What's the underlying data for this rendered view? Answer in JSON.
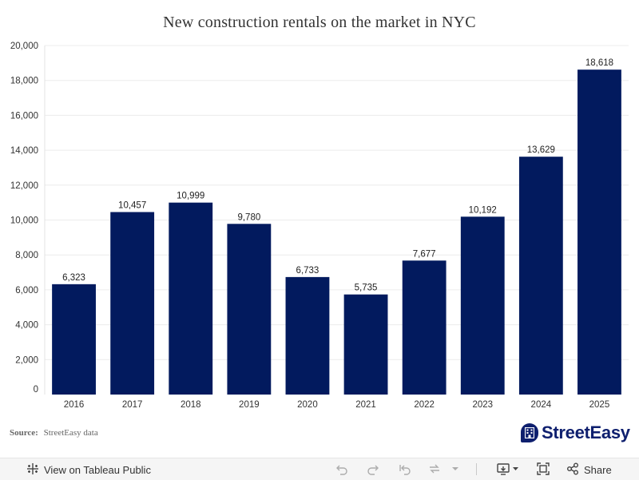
{
  "chart_data": {
    "type": "bar",
    "title": "New construction rentals on the market in NYC",
    "categories": [
      "2016",
      "2017",
      "2018",
      "2019",
      "2020",
      "2021",
      "2022",
      "2023",
      "2024",
      "2025"
    ],
    "values": [
      6323,
      10457,
      10999,
      9780,
      6733,
      5735,
      7677,
      10192,
      13629,
      18618
    ],
    "value_labels": [
      "6,323",
      "10,457",
      "10,999",
      "9,780",
      "6,733",
      "5,735",
      "7,677",
      "10,192",
      "13,629",
      "18,618"
    ],
    "yticks": [
      "0",
      "2,000",
      "4,000",
      "6,000",
      "8,000",
      "10,000",
      "12,000",
      "14,000",
      "16,000",
      "18,000",
      "20,000"
    ],
    "ytick_values": [
      0,
      2000,
      4000,
      6000,
      8000,
      10000,
      12000,
      14000,
      16000,
      18000,
      20000
    ],
    "ylim": [
      0,
      20000
    ],
    "xlabel": "",
    "ylabel": "",
    "grid": true,
    "bar_color": "#021a5e"
  },
  "source": {
    "label": "Source:",
    "text": "StreetEasy data"
  },
  "logo": {
    "text": "StreetEasy",
    "color": "#0e1f6e"
  },
  "toolbar": {
    "view_label": "View on Tableau Public",
    "share_label": "Share",
    "icons": [
      "tableau-icon",
      "undo-icon",
      "redo-icon",
      "revert-icon",
      "refresh-icon",
      "dropdown-icon",
      "download-icon",
      "fullscreen-icon",
      "share-icon"
    ]
  }
}
